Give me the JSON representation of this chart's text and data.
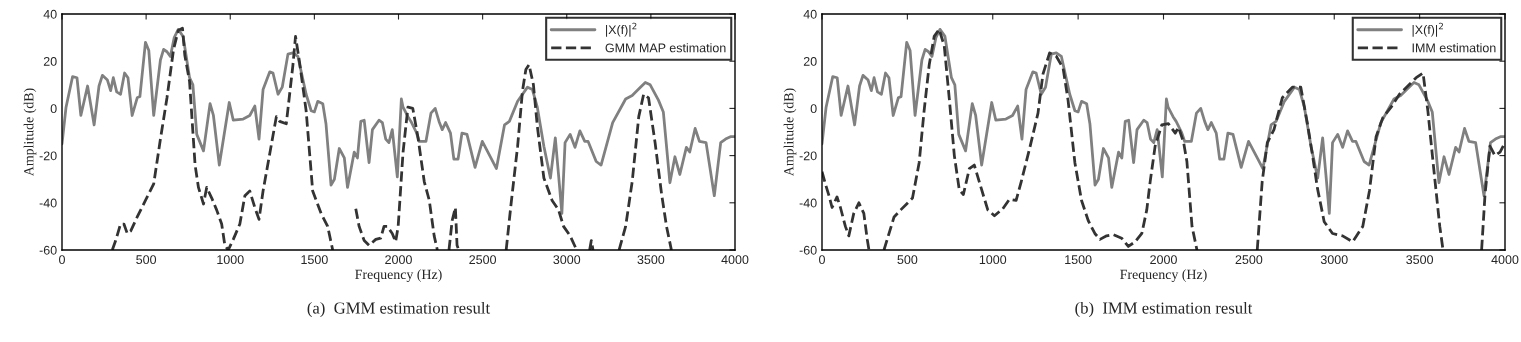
{
  "chart_data": [
    {
      "type": "line",
      "xlabel": "Frequency (Hz)",
      "ylabel": "Amplitude (dB)",
      "xlim": [
        0,
        4000
      ],
      "ylim": [
        -60,
        40
      ],
      "xticks": [
        0,
        500,
        1000,
        1500,
        2000,
        2500,
        3000,
        3500,
        4000
      ],
      "yticks": [
        -60,
        -40,
        -20,
        0,
        20,
        40
      ],
      "legend": "top right",
      "annotations": [
        "(a)  GMM estimation result"
      ],
      "series": [
        {
          "name": "|X(f)|$^{2}$",
          "color": "#808080",
          "line_style": "solid",
          "x": [
            0,
            24,
            63,
            89,
            112,
            152,
            191,
            220,
            240,
            270,
            289,
            305,
            325,
            348,
            372,
            392,
            417,
            447,
            463,
            496,
            516,
            545,
            585,
            604,
            624,
            644,
            667,
            691,
            720,
            758,
            778,
            801,
            841,
            880,
            900,
            935,
            994,
            1018,
            1077,
            1116,
            1146,
            1171,
            1195,
            1235,
            1254,
            1284,
            1309,
            1343,
            1372,
            1402,
            1451,
            1481,
            1500,
            1520,
            1550,
            1569,
            1599,
            1619,
            1648,
            1678,
            1697,
            1737,
            1756,
            1776,
            1796,
            1825,
            1845,
            1884,
            1904,
            1924,
            1943,
            1963,
            1993,
            2017,
            2027,
            2056,
            2074,
            2105,
            2124,
            2163,
            2193,
            2218,
            2241,
            2260,
            2280,
            2309,
            2329,
            2354,
            2377,
            2407,
            2455,
            2498,
            2553,
            2582,
            2630,
            2659,
            2708,
            2767,
            2796,
            2825,
            2864,
            2903,
            2932,
            2951,
            2971,
            2990,
            3020,
            3049,
            3078,
            3107,
            3127,
            3175,
            3204,
            3273,
            3350,
            3389,
            3438,
            3467,
            3496,
            3545,
            3574,
            3613,
            3643,
            3672,
            3711,
            3731,
            3763,
            3789,
            3828,
            3877,
            3915,
            3944,
            3973,
            4000
          ],
          "values": [
            -15,
            0.5,
            13.5,
            13,
            -3,
            9.5,
            -7,
            9.5,
            14,
            12,
            7.5,
            13,
            7,
            6,
            15,
            13,
            -3,
            4.5,
            5,
            28,
            24.5,
            -3,
            20.5,
            25,
            24,
            22,
            30,
            33.5,
            30.5,
            13,
            10,
            -11,
            -18,
            2,
            -3,
            -24,
            2.5,
            -5,
            -4.5,
            -3,
            1,
            -13,
            8,
            15.5,
            15,
            6,
            9,
            23,
            23.5,
            22,
            6,
            -1,
            -1.5,
            3,
            2,
            -6.5,
            -32.5,
            -30,
            -17,
            -21,
            -33.5,
            -18.5,
            -21,
            -5.5,
            -5,
            -23,
            -9,
            -5,
            -6,
            -13,
            -14.5,
            -9,
            -29,
            4,
            0.5,
            -3.5,
            -5.5,
            -10,
            -14,
            -14,
            -2,
            0,
            -5.5,
            -9,
            -6,
            -10.5,
            -21.5,
            -21.5,
            -10.5,
            -11,
            -25,
            -14,
            -21.5,
            -25.5,
            -7,
            -5.5,
            3,
            9,
            8,
            0.5,
            -16,
            -29.5,
            -12.5,
            -28,
            -44.5,
            -14.5,
            -11,
            -16.5,
            -9.5,
            -14,
            -14,
            -22.5,
            -24,
            -6,
            4,
            5.5,
            9,
            11,
            10,
            3.5,
            -1.5,
            -31.5,
            -20.5,
            -28,
            -16.5,
            -18.5,
            -8.5,
            -14,
            -14.5,
            -37,
            -14.5,
            -13,
            -12,
            -12
          ]
        },
        {
          "name": "GMM MAP estimation",
          "color": "#333333",
          "line_style": "dashed",
          "x": [
            299,
            319,
            348,
            368,
            388,
            408,
            447,
            496,
            545,
            585,
            624,
            663,
            691,
            716,
            730,
            758,
            791,
            811,
            841,
            860,
            890,
            919,
            949,
            968,
            988,
            1018,
            1057,
            1087,
            1116,
            1146,
            1171,
            1195,
            1219,
            1274,
            1294,
            1333,
            1372,
            1388,
            1412,
            1451,
            1490,
            1540,
            1579,
            1609,
            1650,
            1746,
            1766,
            1796,
            1825,
            1865,
            1894,
            1914,
            1933,
            1963,
            1983,
            1998,
            2027,
            2056,
            2085,
            2115,
            2153,
            2183,
            2212,
            2231,
            2270,
            2300,
            2319,
            2338,
            2348,
            2358,
            2500,
            2640,
            2669,
            2708,
            2737,
            2757,
            2776,
            2802,
            2825,
            2864,
            2913,
            2951,
            2981,
            3020,
            3059,
            3100,
            3136,
            3146,
            3156,
            3230,
            3311,
            3350,
            3389,
            3428,
            3457,
            3486,
            3525,
            3564,
            3593,
            3622
          ],
          "values": [
            -60,
            -56,
            -49,
            -49,
            -53,
            -52,
            -46,
            -39,
            -32,
            -13,
            4.5,
            25,
            33,
            34,
            22.5,
            11.5,
            -24,
            -33.5,
            -40.5,
            -33.5,
            -38,
            -43,
            -49,
            -58,
            -60,
            -55.5,
            -49,
            -37,
            -35,
            -42,
            -47,
            -35,
            -25.5,
            -3.5,
            -5.5,
            -6.5,
            18,
            30.5,
            19.5,
            -1,
            -35,
            -44.5,
            -50,
            -60,
            null,
            -42.5,
            -50,
            -56,
            -58,
            -55.5,
            -55,
            -50,
            -50,
            -53,
            -56.5,
            -50,
            -18.6,
            0.5,
            0,
            -12,
            -31,
            -39,
            -54,
            -60,
            null,
            -60,
            -47.5,
            -42,
            -58,
            -60,
            null,
            -60,
            -40.5,
            -16,
            7.5,
            16.5,
            18.5,
            10,
            -7.5,
            -29.5,
            -39,
            -43,
            -50,
            -54,
            -60,
            null,
            -60,
            -56,
            -60,
            null,
            -60,
            -50,
            -31,
            -3.5,
            6,
            4.5,
            -14.5,
            -36.5,
            -50,
            -60
          ]
        }
      ]
    },
    {
      "type": "line",
      "xlabel": "Frequency (Hz)",
      "ylabel": "Amplitude (dB)",
      "xlim": [
        0,
        4000
      ],
      "ylim": [
        -60,
        40
      ],
      "xticks": [
        0,
        500,
        1000,
        1500,
        2000,
        2500,
        3000,
        3500,
        4000
      ],
      "yticks": [
        -60,
        -40,
        -20,
        0,
        20,
        40
      ],
      "legend": "top right",
      "annotations": [
        "(b)  IMM estimation result"
      ],
      "series": [
        {
          "name": "|X(f)|$^{2}$",
          "color": "#808080",
          "line_style": "solid",
          "x": [
            0,
            24,
            63,
            89,
            112,
            152,
            191,
            220,
            240,
            270,
            289,
            305,
            325,
            348,
            372,
            392,
            417,
            447,
            463,
            496,
            516,
            545,
            585,
            604,
            624,
            644,
            667,
            691,
            720,
            758,
            778,
            801,
            841,
            880,
            900,
            935,
            994,
            1018,
            1077,
            1116,
            1146,
            1171,
            1195,
            1235,
            1254,
            1284,
            1309,
            1343,
            1372,
            1402,
            1451,
            1481,
            1500,
            1520,
            1550,
            1569,
            1599,
            1619,
            1648,
            1678,
            1697,
            1737,
            1756,
            1776,
            1796,
            1825,
            1845,
            1884,
            1904,
            1924,
            1943,
            1963,
            1993,
            2017,
            2027,
            2056,
            2074,
            2105,
            2124,
            2163,
            2193,
            2218,
            2241,
            2260,
            2280,
            2309,
            2329,
            2354,
            2377,
            2407,
            2455,
            2498,
            2553,
            2582,
            2630,
            2659,
            2708,
            2767,
            2796,
            2825,
            2864,
            2903,
            2932,
            2951,
            2971,
            2990,
            3020,
            3049,
            3078,
            3107,
            3127,
            3175,
            3204,
            3273,
            3350,
            3389,
            3438,
            3467,
            3496,
            3545,
            3574,
            3613,
            3643,
            3672,
            3711,
            3731,
            3763,
            3789,
            3828,
            3877,
            3915,
            3944,
            3973,
            4000
          ],
          "values": [
            -15,
            0.5,
            13.5,
            13,
            -3,
            9.5,
            -7,
            9.5,
            14,
            12,
            7.5,
            13,
            7,
            6,
            15,
            13,
            -3,
            4.5,
            5,
            28,
            24.5,
            -3,
            20.5,
            25,
            24,
            22,
            30,
            33.5,
            30.5,
            13,
            10,
            -11,
            -18,
            2,
            -3,
            -24,
            2.5,
            -5,
            -4.5,
            -3,
            1,
            -13,
            8,
            15.5,
            15,
            6,
            9,
            23,
            23.5,
            22,
            6,
            -1,
            -1.5,
            3,
            2,
            -6.5,
            -32.5,
            -30,
            -17,
            -21,
            -33.5,
            -18.5,
            -21,
            -5.5,
            -5,
            -23,
            -9,
            -5,
            -6,
            -13,
            -14.5,
            -9,
            -29,
            4,
            0.5,
            -3.5,
            -5.5,
            -10,
            -14,
            -14,
            -2,
            0,
            -5.5,
            -9,
            -6,
            -10.5,
            -21.5,
            -21.5,
            -10.5,
            -11,
            -25,
            -14,
            -21.5,
            -25.5,
            -7,
            -5.5,
            3,
            9,
            8,
            0.5,
            -16,
            -29.5,
            -12.5,
            -28,
            -44.5,
            -14.5,
            -11,
            -16.5,
            -9.5,
            -14,
            -14,
            -22.5,
            -24,
            -6,
            4,
            5.5,
            9,
            11,
            10,
            3.5,
            -1.5,
            -31.5,
            -20.5,
            -28,
            -16.5,
            -18.5,
            -8.5,
            -14,
            -14.5,
            -37,
            -14.5,
            -13,
            -12,
            -12
          ]
        },
        {
          "name": "IMM estimation",
          "color": "#333333",
          "line_style": "dashed",
          "x": [
            0,
            20,
            39,
            59,
            88,
            108,
            137,
            157,
            186,
            216,
            245,
            265,
            275,
            320,
            363,
            382,
            422,
            461,
            530,
            569,
            598,
            628,
            657,
            686,
            716,
            745,
            775,
            804,
            828,
            863,
            892,
            931,
            971,
            1010,
            1059,
            1098,
            1137,
            1167,
            1216,
            1265,
            1294,
            1333,
            1373,
            1412,
            1441,
            1481,
            1520,
            1559,
            1598,
            1628,
            1667,
            1706,
            1755,
            1794,
            1834,
            1873,
            1902,
            1922,
            1951,
            1990,
            2029,
            2069,
            2088,
            2118,
            2137,
            2167,
            2196,
            2370,
            2549,
            2578,
            2608,
            2647,
            2696,
            2755,
            2804,
            2843,
            2873,
            2902,
            2941,
            2990,
            3049,
            3108,
            3167,
            3206,
            3245,
            3284,
            3333,
            3382,
            3431,
            3480,
            3520,
            3549,
            3579,
            3618,
            3637,
            3750,
            3863,
            3883,
            3912,
            3941,
            3971,
            4000
          ],
          "values": [
            -26.8,
            -32,
            -36.5,
            -42,
            -37.5,
            -42,
            -50,
            -54,
            -44.5,
            -40,
            -44.5,
            -55.5,
            -60,
            null,
            -60,
            -55.5,
            -46,
            -43,
            -38,
            -23,
            -1,
            18.5,
            30.5,
            33.5,
            26.5,
            4.5,
            -20,
            -34.5,
            -36.5,
            -25.5,
            -24,
            -33.5,
            -43,
            -45.5,
            -42.5,
            -38.5,
            -39,
            -31,
            -17,
            -2,
            14.5,
            23.5,
            22,
            17,
            3.5,
            -23,
            -39,
            -47.5,
            -53,
            -55.5,
            -54,
            -53.5,
            -55,
            -58.5,
            -56.5,
            -53,
            -43,
            -31,
            -16,
            -7,
            -6.5,
            -10.5,
            -8,
            -14.5,
            -22.5,
            -50,
            -60,
            null,
            -60,
            -31,
            -14.5,
            -9,
            4.5,
            9,
            9,
            -6.5,
            -20,
            -34,
            -48,
            -53,
            -54,
            -56.5,
            -50,
            -35,
            -12,
            -4,
            0.5,
            6,
            9.5,
            13,
            15,
            -1.5,
            -23,
            -50,
            -60,
            null,
            -60,
            -36.5,
            -16,
            -20,
            -18.5,
            -14.5
          ]
        }
      ]
    }
  ]
}
